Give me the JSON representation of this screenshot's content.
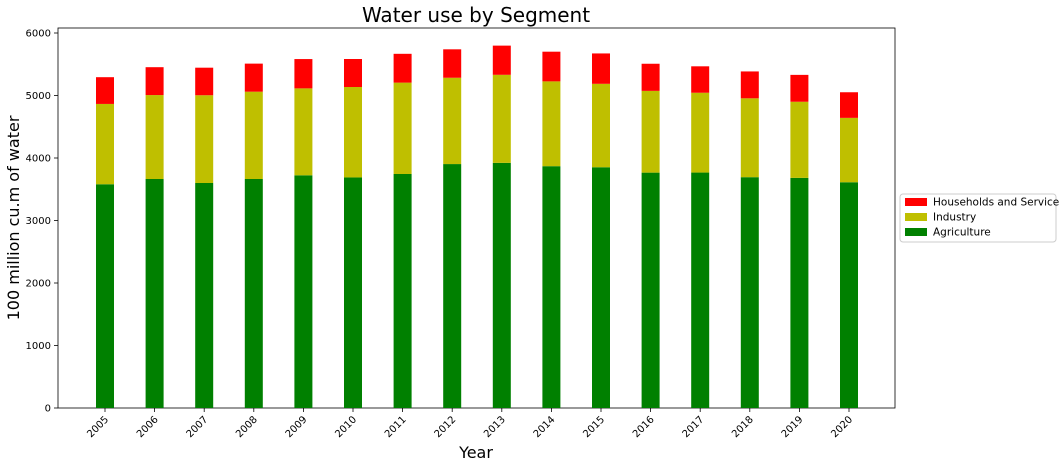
{
  "chart_data": {
    "type": "bar",
    "stacked": true,
    "title": "Water use by Segment",
    "xlabel": "Year",
    "ylabel": "100 million cu.m of water",
    "ylim": [
      0,
      6080
    ],
    "yticks": [
      0,
      1000,
      2000,
      3000,
      4000,
      5000,
      6000
    ],
    "grid": false,
    "legend_position": "right",
    "categories": [
      "2005",
      "2006",
      "2007",
      "2008",
      "2009",
      "2010",
      "2011",
      "2012",
      "2013",
      "2014",
      "2015",
      "2016",
      "2017",
      "2018",
      "2019",
      "2020"
    ],
    "series": [
      {
        "name": "Agriculture",
        "color": "#008000",
        "values": [
          3580,
          3664,
          3600,
          3664,
          3723,
          3689,
          3744,
          3903,
          3922,
          3869,
          3852,
          3766,
          3767,
          3693,
          3682,
          3612
        ]
      },
      {
        "name": "Industry",
        "color": "#bfbf00",
        "values": [
          1285,
          1343,
          1404,
          1397,
          1391,
          1447,
          1462,
          1381,
          1409,
          1357,
          1335,
          1308,
          1277,
          1262,
          1218,
          1030
        ]
      },
      {
        "name": "Households and Service",
        "color": "#ff0000",
        "values": [
          428,
          446,
          441,
          449,
          469,
          448,
          461,
          455,
          467,
          475,
          486,
          434,
          423,
          430,
          430,
          410
        ]
      }
    ],
    "legend_order": [
      "Households and Service",
      "Industry",
      "Agriculture"
    ]
  }
}
